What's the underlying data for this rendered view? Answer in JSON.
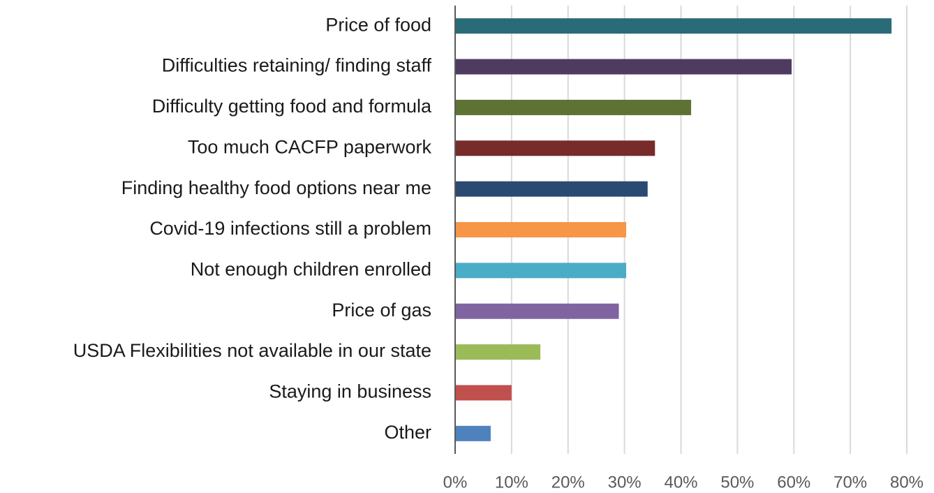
{
  "chart_data": {
    "type": "barh",
    "categories": [
      "Price of food",
      "Difficulties retaining/ finding staff",
      "Difficulty getting food and formula",
      "Too much CACFP paperwork",
      "Finding healthy food options near me",
      "Covid-19 infections still a problem",
      "Not enough children enrolled",
      "Price of gas",
      "USDA Flexibilities not available in our state",
      "Staying in business",
      "Other"
    ],
    "values": [
      77.3,
      59.6,
      41.8,
      35.4,
      34.1,
      30.3,
      30.3,
      29.0,
      15.1,
      10.0,
      6.3
    ],
    "colors": [
      "#2a6b78",
      "#4f3b60",
      "#5e7233",
      "#772b2b",
      "#2b4a72",
      "#f79646",
      "#4bacc6",
      "#8064a2",
      "#9bbb59",
      "#c0504d",
      "#4f81bd"
    ],
    "xlim": [
      0,
      80
    ],
    "xticks": [
      {
        "value": 0,
        "label": "0%"
      },
      {
        "value": 10,
        "label": "10%"
      },
      {
        "value": 20,
        "label": "20%"
      },
      {
        "value": 30,
        "label": "30%"
      },
      {
        "value": 40,
        "label": "40%"
      },
      {
        "value": 50,
        "label": "50%"
      },
      {
        "value": 60,
        "label": "60%"
      },
      {
        "value": 70,
        "label": "70%"
      },
      {
        "value": 80,
        "label": "80%"
      }
    ],
    "grid": true
  }
}
